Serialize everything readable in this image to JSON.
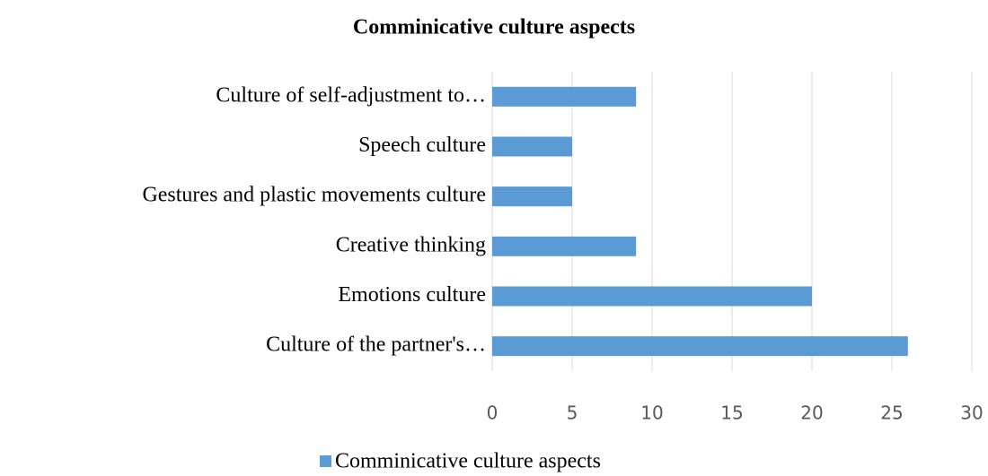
{
  "chart_data": {
    "type": "bar",
    "orientation": "horizontal",
    "title": "Comminicative culture aspects",
    "categories": [
      "Culture of self-adjustment to…",
      "Speech culture",
      "Gestures and plastic movements culture",
      "Creative thinking",
      "Emotions culture",
      "Culture of the partner's…"
    ],
    "series": [
      {
        "name": "Comminicative culture aspects",
        "color": "#5b9bd5",
        "values": [
          9,
          5,
          5,
          9,
          20,
          26
        ]
      }
    ],
    "xlim": [
      0,
      30
    ],
    "xticks": [
      0,
      5,
      10,
      15,
      20,
      25,
      30
    ],
    "grid": true,
    "legend": "bottom"
  }
}
